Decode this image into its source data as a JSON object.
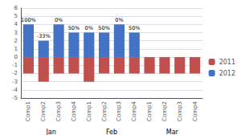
{
  "chart_data": {
    "type": "bar",
    "categories": [
      "Comp1",
      "Comp2",
      "Comp3",
      "Comp4",
      "Comp1",
      "Comp2",
      "Comp3",
      "Comp4",
      "Comp1",
      "Comp2",
      "Comp3",
      "Comp4"
    ],
    "series": [
      {
        "name": "2011",
        "color": "#C0504D",
        "values": [
          -2,
          -3,
          -2,
          -2,
          -3,
          -2,
          -2,
          -2,
          -2,
          -2,
          -2,
          -2
        ]
      },
      {
        "name": "2012",
        "color": "#4472C4",
        "values": [
          4,
          2,
          4,
          3,
          3,
          3,
          4,
          3,
          0,
          0,
          0,
          0
        ]
      }
    ],
    "annotations": {
      "bar_labels": [
        "100%",
        "-33%",
        "0%",
        "50%",
        "0%",
        "50%",
        "0%",
        "50%",
        null,
        null,
        null,
        null
      ],
      "group_labels": [
        "Jan",
        "Feb",
        "Mar"
      ]
    },
    "ylim": [
      -5,
      6
    ],
    "yticks": [
      -5,
      -4,
      -3,
      -2,
      -1,
      0,
      1,
      2,
      3,
      4,
      5,
      6
    ],
    "grid": true,
    "legend": "right"
  }
}
